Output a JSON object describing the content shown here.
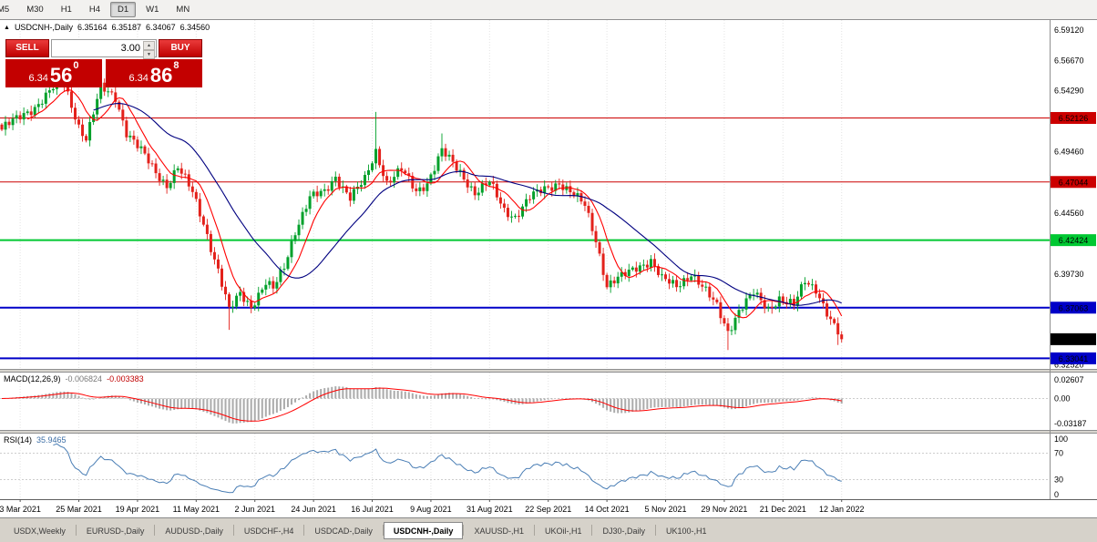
{
  "toolbar": {
    "timeframes": [
      {
        "label": "M5",
        "active": false,
        "clipped": true
      },
      {
        "label": "M30",
        "active": false
      },
      {
        "label": "H1",
        "active": false
      },
      {
        "label": "H4",
        "active": false
      },
      {
        "label": "D1",
        "active": true
      },
      {
        "label": "W1",
        "active": false
      },
      {
        "label": "MN",
        "active": false
      }
    ]
  },
  "header": {
    "expand_icon": "▲",
    "symbol": "USDCNH-,Daily",
    "open": "6.35164",
    "high": "6.35187",
    "low": "6.34067",
    "close": "6.34560"
  },
  "trade_panel": {
    "sell_label": "SELL",
    "buy_label": "BUY",
    "volume": "3.00",
    "spin_up": "▲",
    "spin_down": "▼",
    "sell_price_small": "6.34",
    "sell_price_big": "56",
    "sell_price_sup": "0",
    "buy_price_small": "6.34",
    "buy_price_big": "86",
    "buy_price_sup": "8"
  },
  "indicators": {
    "macd": {
      "label": "MACD(12,26,9)",
      "value1": "-0.006824",
      "value2": "-0.003383",
      "axis": [
        {
          "label": "0.02607",
          "value": 0.02607
        },
        {
          "label": "0.00",
          "value": 0
        },
        {
          "label": "-0.03187",
          "value": -0.03187
        }
      ]
    },
    "rsi": {
      "label": "RSI(14)",
      "value": "35.9465",
      "axis": [
        {
          "label": "100",
          "value": 100
        },
        {
          "label": "70",
          "value": 70
        },
        {
          "label": "30",
          "value": 30
        },
        {
          "label": "0",
          "value": 0
        }
      ],
      "levels": [
        70,
        30
      ]
    }
  },
  "colors": {
    "bull": "#00a02a",
    "bear": "#e3211b",
    "ma_fast": "#ff0000",
    "ma_slow": "#000080",
    "macd_hist": "#ababab",
    "macd_signal": "#ff0000",
    "rsi_line": "#4a7eb5",
    "grid": "#e3e3e3",
    "panel_red": "#c30000"
  },
  "chart_data": {
    "type": "candlestick+indicators",
    "symbol": "USDCNH",
    "timeframe": "Daily",
    "candle_count": 230,
    "candle_step": 4.025,
    "x_start": 2,
    "y_range": [
      6.322,
      6.599
    ],
    "macd_range": [
      -0.04,
      0.033
    ],
    "last_close": 6.3456,
    "last_ohlc": {
      "open": 6.35164,
      "high": 6.35187,
      "low": 6.34067,
      "close": 6.3456
    },
    "close_anchors": [
      [
        0,
        6.512
      ],
      [
        1,
        6.515
      ],
      [
        4,
        6.52
      ],
      [
        9,
        6.53
      ],
      [
        14,
        6.545
      ],
      [
        17,
        6.548
      ],
      [
        21,
        6.515
      ],
      [
        23,
        6.505
      ],
      [
        27,
        6.545
      ],
      [
        31,
        6.538
      ],
      [
        34,
        6.51
      ],
      [
        38,
        6.495
      ],
      [
        42,
        6.478
      ],
      [
        45,
        6.468
      ],
      [
        48,
        6.482
      ],
      [
        52,
        6.462
      ],
      [
        55,
        6.438
      ],
      [
        59,
        6.4
      ],
      [
        62,
        6.368
      ],
      [
        65,
        6.382
      ],
      [
        68,
        6.372
      ],
      [
        72,
        6.39
      ],
      [
        74,
        6.385
      ],
      [
        77,
        6.403
      ],
      [
        80,
        6.432
      ],
      [
        84,
        6.458
      ],
      [
        88,
        6.462
      ],
      [
        91,
        6.475
      ],
      [
        95,
        6.458
      ],
      [
        99,
        6.472
      ],
      [
        102,
        6.495
      ],
      [
        105,
        6.47
      ],
      [
        109,
        6.48
      ],
      [
        113,
        6.463
      ],
      [
        116,
        6.47
      ],
      [
        120,
        6.495
      ],
      [
        125,
        6.478
      ],
      [
        129,
        6.462
      ],
      [
        133,
        6.47
      ],
      [
        137,
        6.448
      ],
      [
        140,
        6.443
      ],
      [
        144,
        6.458
      ],
      [
        148,
        6.465
      ],
      [
        152,
        6.47
      ],
      [
        155,
        6.462
      ],
      [
        159,
        6.452
      ],
      [
        162,
        6.425
      ],
      [
        165,
        6.388
      ],
      [
        169,
        6.395
      ],
      [
        173,
        6.403
      ],
      [
        177,
        6.408
      ],
      [
        180,
        6.393
      ],
      [
        184,
        6.388
      ],
      [
        188,
        6.398
      ],
      [
        192,
        6.383
      ],
      [
        195,
        6.372
      ],
      [
        198,
        6.352
      ],
      [
        201,
        6.368
      ],
      [
        205,
        6.382
      ],
      [
        209,
        6.37
      ],
      [
        212,
        6.378
      ],
      [
        216,
        6.372
      ],
      [
        219,
        6.392
      ],
      [
        222,
        6.386
      ],
      [
        226,
        6.36
      ],
      [
        229,
        6.3456
      ]
    ],
    "spikes": [
      {
        "i": 16,
        "high": 6.556
      },
      {
        "i": 27,
        "high": 6.552
      },
      {
        "i": 62,
        "low": 6.353
      },
      {
        "i": 102,
        "high": 6.526
      },
      {
        "i": 120,
        "high": 6.509
      },
      {
        "i": 198,
        "low": 6.337
      },
      {
        "i": 228,
        "low": 6.341
      }
    ],
    "levels": [
      {
        "label": "6.52126",
        "price": 6.52126,
        "color": "#cc0000",
        "width": 1
      },
      {
        "label": "6.47044",
        "price": 6.47044,
        "color": "#cc0000",
        "width": 1
      },
      {
        "label": "6.42424",
        "price": 6.42424,
        "color": "#00c832",
        "width": 2
      },
      {
        "label": "6.37063",
        "price": 6.37063,
        "color": "#0000c8",
        "width": 2
      },
      {
        "label": "6.33041",
        "price": 6.33041,
        "color": "#0000c8",
        "width": 2
      }
    ],
    "current_price": {
      "label": "6.34560",
      "price": 6.3456,
      "color": "#000000"
    },
    "price_ticks": [
      {
        "label": "6.59120",
        "value": 6.5912
      },
      {
        "label": "6.56670",
        "value": 6.5667
      },
      {
        "label": "6.54290",
        "value": 6.5429
      },
      {
        "label": "6.49460",
        "value": 6.4946
      },
      {
        "label": "6.44560",
        "value": 6.4456
      },
      {
        "label": "6.39730",
        "value": 6.3973
      },
      {
        "label": "6.32520",
        "value": 6.3252
      }
    ],
    "date_tick_first": 5,
    "date_tick_step": 16,
    "date_labels": [
      "3 Mar 2021",
      "25 Mar 2021",
      "19 Apr 2021",
      "11 May 2021",
      "2 Jun 2021",
      "24 Jun 2021",
      "16 Jul 2021",
      "9 Aug 2021",
      "31 Aug 2021",
      "22 Sep 2021",
      "14 Oct 2021",
      "5 Nov 2021",
      "29 Nov 2021",
      "21 Dec 2021",
      "12 Jan 2022"
    ]
  },
  "tabs": [
    {
      "label": "USDX,Weekly",
      "active": false
    },
    {
      "label": "EURUSD-,Daily",
      "active": false
    },
    {
      "label": "AUDUSD-,Daily",
      "active": false
    },
    {
      "label": "USDCHF-,H4",
      "active": false
    },
    {
      "label": "USDCAD-,Daily",
      "active": false
    },
    {
      "label": "USDCNH-,Daily",
      "active": true
    },
    {
      "label": "XAUUSD-,H1",
      "active": false
    },
    {
      "label": "UKOil-,H1",
      "active": false
    },
    {
      "label": "DJ30-,Daily",
      "active": false
    },
    {
      "label": "UK100-,H1",
      "active": false
    }
  ]
}
